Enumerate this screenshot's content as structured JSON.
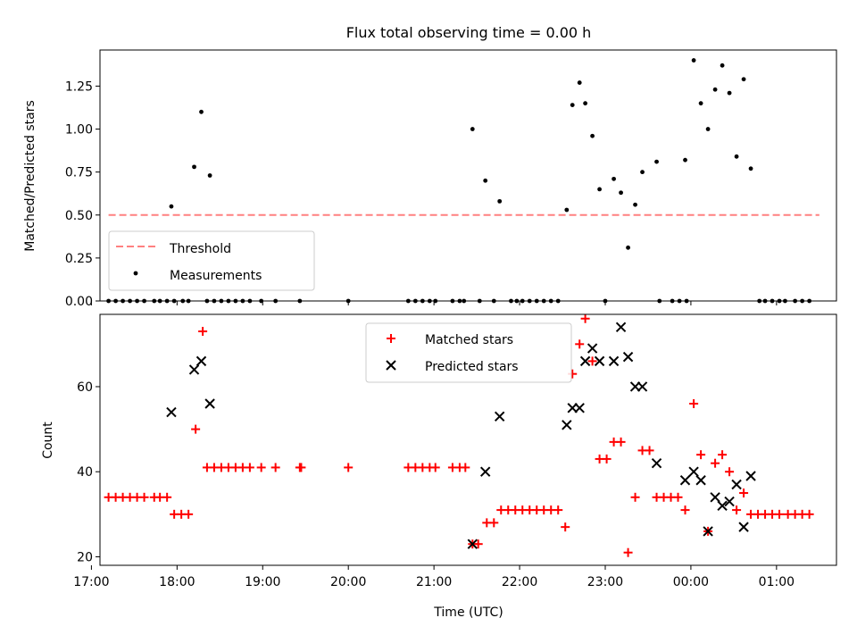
{
  "chart_data": [
    {
      "type": "scatter",
      "title": "Flux total observing time = 0.00 h",
      "xlabel": "",
      "ylabel": "Matched/Predicted stars",
      "xlim": [
        "17:06",
        "01:42"
      ],
      "ylim": [
        0,
        1.46
      ],
      "yticks": [
        "0.00",
        "0.25",
        "0.50",
        "0.75",
        "1.00",
        "1.25"
      ],
      "grid": false,
      "legend": {
        "placement": "lower-left",
        "entries": [
          "Threshold",
          "Measurements"
        ]
      },
      "threshold": {
        "name": "Threshold",
        "y": 0.5,
        "x_start": "17:12",
        "x_end": "01:30",
        "color": "#ff8080"
      },
      "series": [
        {
          "name": "Measurements",
          "color": "#000000",
          "points": [
            [
              "17:12",
              0
            ],
            [
              "17:17",
              0
            ],
            [
              "17:22",
              0
            ],
            [
              "17:27",
              0
            ],
            [
              "17:32",
              0
            ],
            [
              "17:37",
              0
            ],
            [
              "17:44",
              0
            ],
            [
              "17:48",
              0
            ],
            [
              "17:53",
              0
            ],
            [
              "17:58",
              0
            ],
            [
              "17:56",
              0.55
            ],
            [
              "18:04",
              0
            ],
            [
              "18:08",
              0
            ],
            [
              "18:12",
              0.78
            ],
            [
              "18:17",
              1.1
            ],
            [
              "18:23",
              0.73
            ],
            [
              "18:21",
              0
            ],
            [
              "18:26",
              0
            ],
            [
              "18:31",
              0
            ],
            [
              "18:36",
              0
            ],
            [
              "18:41",
              0
            ],
            [
              "18:46",
              0
            ],
            [
              "18:51",
              0
            ],
            [
              "18:59",
              0
            ],
            [
              "19:09",
              0
            ],
            [
              "19:26",
              0
            ],
            [
              "20:00",
              0
            ],
            [
              "20:42",
              0
            ],
            [
              "20:47",
              0
            ],
            [
              "20:52",
              0
            ],
            [
              "20:57",
              0
            ],
            [
              "21:01",
              0
            ],
            [
              "21:13",
              0
            ],
            [
              "21:18",
              0
            ],
            [
              "21:21",
              0
            ],
            [
              "21:27",
              1.0
            ],
            [
              "21:36",
              0.7
            ],
            [
              "21:46",
              0.58
            ],
            [
              "21:32",
              0
            ],
            [
              "21:42",
              0
            ],
            [
              "21:54",
              0
            ],
            [
              "21:58",
              0
            ],
            [
              "22:02",
              0
            ],
            [
              "22:07",
              0
            ],
            [
              "22:12",
              0
            ],
            [
              "22:17",
              0
            ],
            [
              "22:22",
              0
            ],
            [
              "22:27",
              0
            ],
            [
              "22:33",
              0.53
            ],
            [
              "22:37",
              1.14
            ],
            [
              "22:42",
              1.27
            ],
            [
              "22:46",
              1.15
            ],
            [
              "22:51",
              0.96
            ],
            [
              "22:56",
              0.65
            ],
            [
              "23:06",
              0.71
            ],
            [
              "23:11",
              0.63
            ],
            [
              "23:16",
              0.31
            ],
            [
              "23:21",
              0.56
            ],
            [
              "23:26",
              0.75
            ],
            [
              "23:36",
              0.81
            ],
            [
              "23:00",
              0
            ],
            [
              "23:38",
              0
            ],
            [
              "23:47",
              0
            ],
            [
              "23:52",
              0
            ],
            [
              "23:57",
              0
            ],
            [
              "23:56",
              0.82
            ],
            [
              "00:02",
              1.4
            ],
            [
              "00:07",
              1.15
            ],
            [
              "00:12",
              1.0
            ],
            [
              "00:17",
              1.23
            ],
            [
              "00:22",
              1.37
            ],
            [
              "00:27",
              1.21
            ],
            [
              "00:32",
              0.84
            ],
            [
              "00:37",
              1.29
            ],
            [
              "00:42",
              0.77
            ],
            [
              "00:48",
              0
            ],
            [
              "00:52",
              0
            ],
            [
              "00:57",
              0
            ],
            [
              "01:02",
              0
            ],
            [
              "01:06",
              0
            ],
            [
              "01:13",
              0
            ],
            [
              "01:18",
              0
            ],
            [
              "01:23",
              0
            ]
          ]
        }
      ]
    },
    {
      "type": "scatter",
      "title": "",
      "xlabel": "Time (UTC)",
      "ylabel": "Count",
      "xticks": [
        "17:00",
        "18:00",
        "19:00",
        "20:00",
        "21:00",
        "22:00",
        "23:00",
        "00:00",
        "01:00"
      ],
      "xlim": [
        "17:06",
        "01:42"
      ],
      "ylim": [
        18,
        77
      ],
      "yticks": [
        "20",
        "40",
        "60"
      ],
      "grid": false,
      "legend": {
        "placement": "upper-center",
        "entries": [
          "Matched stars",
          "Predicted stars"
        ]
      },
      "series": [
        {
          "name": "Matched stars",
          "marker": "plus",
          "color": "#ff0000",
          "points": [
            [
              "17:12",
              34
            ],
            [
              "17:17",
              34
            ],
            [
              "17:22",
              34
            ],
            [
              "17:27",
              34
            ],
            [
              "17:32",
              34
            ],
            [
              "17:37",
              34
            ],
            [
              "17:44",
              34
            ],
            [
              "17:48",
              34
            ],
            [
              "17:53",
              34
            ],
            [
              "17:58",
              30
            ],
            [
              "18:03",
              30
            ],
            [
              "18:08",
              30
            ],
            [
              "18:13",
              50
            ],
            [
              "18:18",
              73
            ],
            [
              "18:21",
              41
            ],
            [
              "18:26",
              41
            ],
            [
              "18:31",
              41
            ],
            [
              "18:36",
              41
            ],
            [
              "18:41",
              41
            ],
            [
              "18:46",
              41
            ],
            [
              "18:51",
              41
            ],
            [
              "18:59",
              41
            ],
            [
              "19:09",
              41
            ],
            [
              "19:26",
              41
            ],
            [
              "19:27",
              41
            ],
            [
              "20:00",
              41
            ],
            [
              "20:42",
              41
            ],
            [
              "20:47",
              41
            ],
            [
              "20:52",
              41
            ],
            [
              "20:57",
              41
            ],
            [
              "21:01",
              41
            ],
            [
              "21:13",
              41
            ],
            [
              "21:18",
              41
            ],
            [
              "21:22",
              41
            ],
            [
              "21:27",
              23
            ],
            [
              "21:31",
              23
            ],
            [
              "21:37",
              28
            ],
            [
              "21:42",
              28
            ],
            [
              "21:47",
              31
            ],
            [
              "21:52",
              31
            ],
            [
              "21:57",
              31
            ],
            [
              "22:02",
              31
            ],
            [
              "22:07",
              31
            ],
            [
              "22:12",
              31
            ],
            [
              "22:17",
              31
            ],
            [
              "22:22",
              31
            ],
            [
              "22:27",
              31
            ],
            [
              "22:32",
              27
            ],
            [
              "22:37",
              63
            ],
            [
              "22:42",
              70
            ],
            [
              "22:46",
              76
            ],
            [
              "22:51",
              66
            ],
            [
              "22:56",
              43
            ],
            [
              "23:01",
              43
            ],
            [
              "23:06",
              47
            ],
            [
              "23:11",
              47
            ],
            [
              "23:16",
              21
            ],
            [
              "23:21",
              34
            ],
            [
              "23:26",
              45
            ],
            [
              "23:31",
              45
            ],
            [
              "23:36",
              34
            ],
            [
              "23:41",
              34
            ],
            [
              "23:46",
              34
            ],
            [
              "23:51",
              34
            ],
            [
              "23:56",
              31
            ],
            [
              "00:02",
              56
            ],
            [
              "00:07",
              44
            ],
            [
              "00:12",
              26
            ],
            [
              "00:17",
              42
            ],
            [
              "00:22",
              44
            ],
            [
              "00:27",
              40
            ],
            [
              "00:32",
              31
            ],
            [
              "00:37",
              35
            ],
            [
              "00:42",
              30
            ],
            [
              "00:47",
              30
            ],
            [
              "00:52",
              30
            ],
            [
              "00:57",
              30
            ],
            [
              "01:02",
              30
            ],
            [
              "01:08",
              30
            ],
            [
              "01:13",
              30
            ],
            [
              "01:18",
              30
            ],
            [
              "01:23",
              30
            ]
          ]
        },
        {
          "name": "Predicted stars",
          "marker": "x",
          "color": "#000000",
          "points": [
            [
              "17:56",
              54
            ],
            [
              "18:12",
              64
            ],
            [
              "18:17",
              66
            ],
            [
              "18:23",
              56
            ],
            [
              "21:27",
              23
            ],
            [
              "21:36",
              40
            ],
            [
              "21:46",
              53
            ],
            [
              "22:33",
              51
            ],
            [
              "22:37",
              55
            ],
            [
              "22:42",
              55
            ],
            [
              "22:46",
              66
            ],
            [
              "22:51",
              69
            ],
            [
              "22:56",
              66
            ],
            [
              "23:06",
              66
            ],
            [
              "23:11",
              74
            ],
            [
              "23:16",
              67
            ],
            [
              "23:21",
              60
            ],
            [
              "23:26",
              60
            ],
            [
              "23:36",
              42
            ],
            [
              "23:56",
              38
            ],
            [
              "00:02",
              40
            ],
            [
              "00:07",
              38
            ],
            [
              "00:12",
              26
            ],
            [
              "00:17",
              34
            ],
            [
              "00:22",
              32
            ],
            [
              "00:27",
              33
            ],
            [
              "00:32",
              37
            ],
            [
              "00:37",
              27
            ],
            [
              "00:42",
              39
            ]
          ]
        }
      ]
    }
  ]
}
